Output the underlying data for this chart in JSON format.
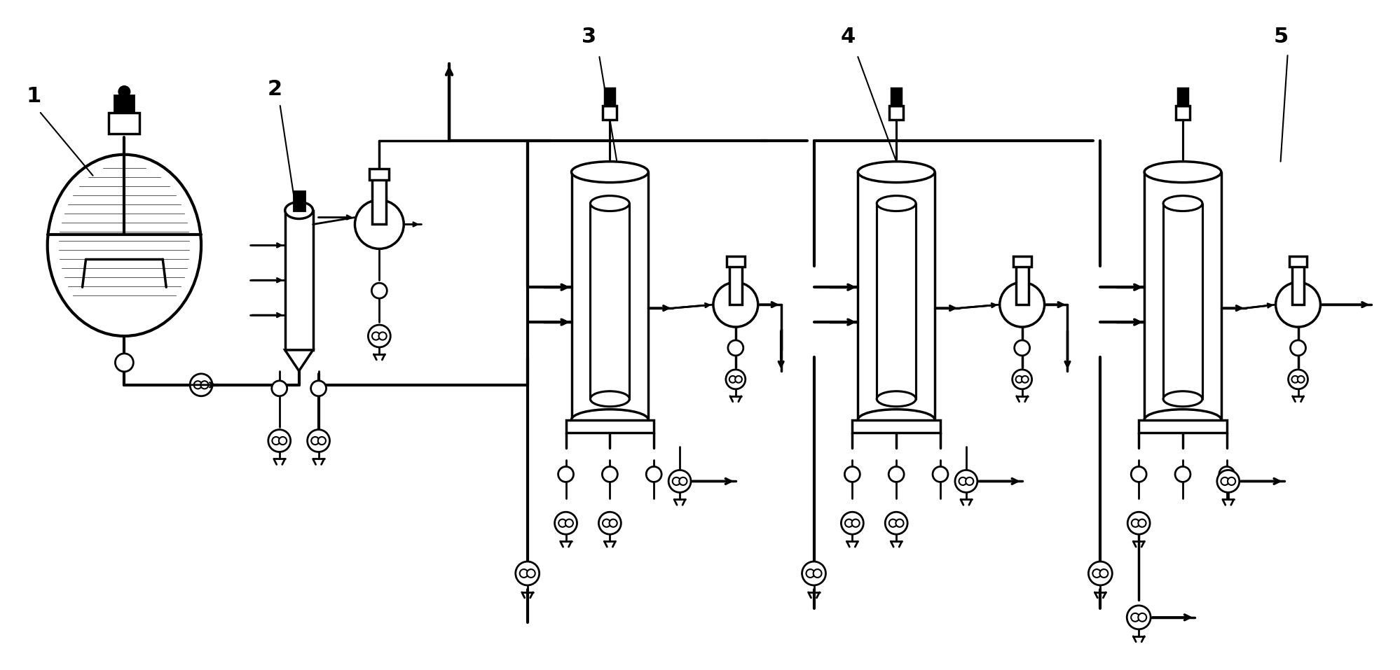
{
  "bg": "#ffffff",
  "lc": "#000000",
  "figsize": [
    19.98,
    9.57
  ],
  "dpi": 100
}
